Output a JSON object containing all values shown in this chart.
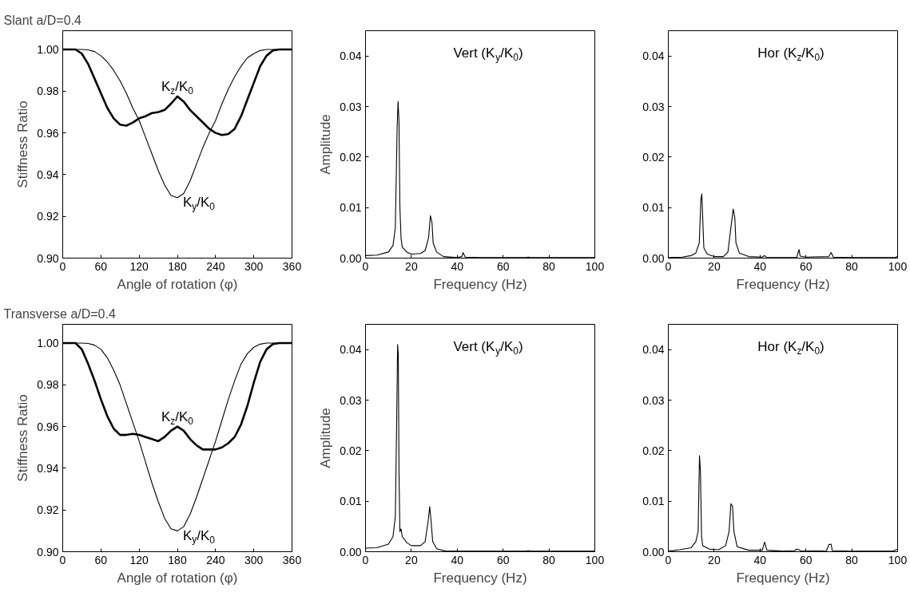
{
  "chart_data": [
    {
      "type": "line",
      "title": "Slant a/D=0.4",
      "xlabel": "Angle of rotation (φ)",
      "ylabel": "Stiffness Ratio",
      "xlim": [
        0,
        360
      ],
      "xticks": [
        0,
        60,
        120,
        180,
        240,
        300,
        360
      ],
      "ylim": [
        0.9,
        1.009
      ],
      "yticks": [
        {
          "value": 0.9,
          "label": "0.90"
        },
        {
          "value": 0.92,
          "label": "0.92"
        },
        {
          "value": 0.94,
          "label": "0.94"
        },
        {
          "value": 0.96,
          "label": "0.96"
        },
        {
          "value": 0.98,
          "label": "0.98"
        },
        {
          "value": 1.0,
          "label": "1.00"
        }
      ],
      "x": [
        0,
        10,
        20,
        30,
        40,
        50,
        60,
        70,
        80,
        90,
        100,
        110,
        120,
        130,
        140,
        150,
        160,
        170,
        180,
        190,
        200,
        210,
        220,
        230,
        240,
        250,
        260,
        270,
        280,
        290,
        300,
        310,
        320,
        330,
        340,
        350,
        360
      ],
      "series": [
        {
          "name": "K$_{z}$/K$_{0}$",
          "color": "#000000",
          "values": [
            1.0,
            1.0,
            1.0,
            0.998,
            0.993,
            0.986,
            0.979,
            0.972,
            0.967,
            0.964,
            0.9635,
            0.965,
            0.967,
            0.968,
            0.9695,
            0.97,
            0.971,
            0.974,
            0.9775,
            0.975,
            0.971,
            0.968,
            0.965,
            0.962,
            0.96,
            0.959,
            0.9595,
            0.962,
            0.968,
            0.976,
            0.984,
            0.992,
            0.997,
            0.9995,
            1.0,
            1.0,
            1.0
          ]
        },
        {
          "name": "K$_{y}$/K$_{0}$",
          "color": "#000000",
          "values": [
            1.0,
            1.0,
            1.0,
            1.0,
            0.9998,
            0.999,
            0.997,
            0.994,
            0.99,
            0.985,
            0.979,
            0.972,
            0.966,
            0.958,
            0.95,
            0.942,
            0.935,
            0.93,
            0.929,
            0.931,
            0.937,
            0.945,
            0.953,
            0.96,
            0.966,
            0.974,
            0.981,
            0.987,
            0.992,
            0.996,
            0.998,
            0.9995,
            1.0,
            1.0,
            1.0,
            1.0,
            1.0
          ]
        }
      ]
    },
    {
      "type": "line",
      "xlabel": "Frequency (Hz)",
      "ylabel": "Amplitude",
      "xlim": [
        0,
        100
      ],
      "xticks": [
        0,
        20,
        40,
        60,
        80,
        100
      ],
      "ylim": [
        0,
        0.045
      ],
      "yticks": [
        {
          "value": 0,
          "label": "0.00"
        },
        {
          "value": 0.01,
          "label": "0.01"
        },
        {
          "value": 0.02,
          "label": "0.02"
        },
        {
          "value": 0.03,
          "label": "0.03"
        },
        {
          "value": 0.04,
          "label": "0.04"
        }
      ],
      "x": [
        0,
        5,
        10,
        12,
        13,
        13.8,
        14.2,
        14.6,
        15,
        15.5,
        16,
        18,
        20,
        24,
        26,
        27.5,
        28.3,
        29,
        29.5,
        31,
        34,
        40,
        42,
        42.5,
        43.5,
        50,
        60,
        70,
        71,
        72,
        80,
        100
      ],
      "series": [
        {
          "name": "Vert (K$_{y}$/K$_{0}$)",
          "color": "#000000",
          "values": [
            0.0005,
            0.0006,
            0.0012,
            0.0025,
            0.006,
            0.026,
            0.031,
            0.027,
            0.01,
            0.004,
            0.0022,
            0.0012,
            0.0008,
            0.0009,
            0.0015,
            0.004,
            0.0084,
            0.007,
            0.003,
            0.0012,
            0.0003,
            0.0001,
            0.0003,
            0.0011,
            0.0002,
            0.0001,
            0.0001,
            0.0001,
            0.0002,
            0.0001,
            0.0001,
            0.0001
          ]
        }
      ]
    },
    {
      "type": "line",
      "xlabel": "Frequency (Hz)",
      "xlim": [
        0,
        100
      ],
      "xticks": [
        0,
        20,
        40,
        60,
        80,
        100
      ],
      "ylim": [
        0,
        0.045
      ],
      "yticks": [
        {
          "value": 0,
          "label": "0.00"
        },
        {
          "value": 0.01,
          "label": "0.01"
        },
        {
          "value": 0.02,
          "label": "0.02"
        },
        {
          "value": 0.03,
          "label": "0.03"
        },
        {
          "value": 0.04,
          "label": "0.04"
        }
      ],
      "x": [
        0,
        6,
        10,
        12,
        13.5,
        14.2,
        14.6,
        15,
        15.5,
        17,
        20,
        24,
        26,
        27.5,
        28.3,
        29,
        29.5,
        31,
        35,
        41,
        42,
        43,
        56,
        57,
        57.5,
        60,
        70,
        71,
        72,
        80,
        99,
        100
      ],
      "series": [
        {
          "name": "Hor (K$_{z}$/K$_{0}$)",
          "color": "#000000",
          "values": [
            0.0001,
            0.0002,
            0.0005,
            0.001,
            0.003,
            0.0115,
            0.0127,
            0.008,
            0.002,
            0.0008,
            0.0003,
            0.0003,
            0.0012,
            0.0068,
            0.0097,
            0.008,
            0.003,
            0.001,
            0.0003,
            0.0002,
            0.0005,
            0.0001,
            0.0001,
            0.0017,
            0.0004,
            0.0002,
            0.0003,
            0.0011,
            0.0002,
            0.0001,
            0.0001,
            0.0004
          ]
        }
      ]
    },
    {
      "type": "line",
      "title": "Transverse a/D=0.4",
      "xlabel": "Angle of rotation (φ)",
      "ylabel": "Stiffness Ratio",
      "xlim": [
        0,
        360
      ],
      "xticks": [
        0,
        60,
        120,
        180,
        240,
        300,
        360
      ],
      "ylim": [
        0.9,
        1.009
      ],
      "yticks": [
        {
          "value": 0.9,
          "label": "0.90"
        },
        {
          "value": 0.92,
          "label": "0.92"
        },
        {
          "value": 0.94,
          "label": "0.94"
        },
        {
          "value": 0.96,
          "label": "0.96"
        },
        {
          "value": 0.98,
          "label": "0.98"
        },
        {
          "value": 1.0,
          "label": "1.00"
        }
      ],
      "x": [
        0,
        10,
        20,
        30,
        40,
        50,
        60,
        70,
        80,
        90,
        100,
        110,
        120,
        130,
        140,
        150,
        160,
        170,
        180,
        190,
        200,
        210,
        220,
        230,
        240,
        250,
        260,
        270,
        280,
        290,
        300,
        310,
        320,
        330,
        340,
        350,
        360
      ],
      "series": [
        {
          "name": "K$_{z}$/K$_{0}$",
          "color": "#000000",
          "values": [
            1.0,
            1.0,
            1.0,
            0.997,
            0.99,
            0.982,
            0.973,
            0.965,
            0.959,
            0.956,
            0.956,
            0.9565,
            0.956,
            0.955,
            0.954,
            0.953,
            0.955,
            0.958,
            0.96,
            0.958,
            0.954,
            0.951,
            0.949,
            0.949,
            0.949,
            0.95,
            0.952,
            0.955,
            0.961,
            0.97,
            0.981,
            0.991,
            0.997,
            0.9995,
            1.0,
            1.0,
            1.0
          ]
        },
        {
          "name": "K$_{y}$/K$_{0}$",
          "color": "#000000",
          "values": [
            1.0,
            1.0,
            1.0,
            1.0,
            0.9998,
            0.999,
            0.997,
            0.993,
            0.987,
            0.98,
            0.971,
            0.962,
            0.953,
            0.943,
            0.933,
            0.924,
            0.916,
            0.911,
            0.91,
            0.912,
            0.918,
            0.926,
            0.935,
            0.944,
            0.953,
            0.963,
            0.973,
            0.982,
            0.99,
            0.995,
            0.998,
            0.9995,
            1.0,
            1.0,
            1.0,
            1.0,
            1.0
          ]
        }
      ]
    },
    {
      "type": "line",
      "xlabel": "Frequency (Hz)",
      "ylabel": "Amplitude",
      "xlim": [
        0,
        100
      ],
      "xticks": [
        0,
        20,
        40,
        60,
        80,
        100
      ],
      "ylim": [
        0,
        0.045
      ],
      "yticks": [
        {
          "value": 0,
          "label": "0.00"
        },
        {
          "value": 0.01,
          "label": "0.01"
        },
        {
          "value": 0.02,
          "label": "0.02"
        },
        {
          "value": 0.03,
          "label": "0.03"
        },
        {
          "value": 0.04,
          "label": "0.04"
        }
      ],
      "x": [
        0,
        5,
        10,
        12,
        13,
        13.6,
        14,
        14.3,
        14.6,
        15,
        15.5,
        16,
        18,
        20,
        24,
        26,
        27.3,
        28,
        28.6,
        29.3,
        31,
        35,
        40,
        60,
        70,
        71,
        72,
        100
      ],
      "series": [
        {
          "name": "Vert (K$_{y}$/K$_{0}$)",
          "color": "#000000",
          "values": [
            0.0007,
            0.0008,
            0.0015,
            0.003,
            0.007,
            0.026,
            0.041,
            0.039,
            0.016,
            0.004,
            0.0045,
            0.003,
            0.0018,
            0.0012,
            0.0012,
            0.002,
            0.006,
            0.0089,
            0.006,
            0.002,
            0.0006,
            0.0001,
            0.0001,
            0.0001,
            0.0001,
            0.0002,
            0.0001,
            0.0001
          ]
        }
      ]
    },
    {
      "type": "line",
      "xlabel": "Frequency (Hz)",
      "xlim": [
        0,
        100
      ],
      "xticks": [
        0,
        20,
        40,
        60,
        80,
        100
      ],
      "ylim": [
        0,
        0.045
      ],
      "yticks": [
        {
          "value": 0,
          "label": "0.00"
        },
        {
          "value": 0.01,
          "label": "0.01"
        },
        {
          "value": 0.02,
          "label": "0.02"
        },
        {
          "value": 0.03,
          "label": "0.03"
        },
        {
          "value": 0.04,
          "label": "0.04"
        }
      ],
      "x": [
        0,
        5,
        10,
        12,
        13,
        13.6,
        14,
        14.5,
        15,
        18,
        22,
        25,
        26.5,
        27.3,
        28,
        28.6,
        30,
        35,
        41,
        42,
        43,
        50,
        55,
        56,
        57,
        58,
        69,
        70,
        71,
        71.5,
        80,
        98,
        100
      ],
      "series": [
        {
          "name": "Hor (K$_{z}$/K$_{0}$)",
          "color": "#000000",
          "values": [
            0.0001,
            0.0004,
            0.0008,
            0.002,
            0.004,
            0.019,
            0.016,
            0.003,
            0.0012,
            0.0005,
            0.0004,
            0.0012,
            0.004,
            0.0095,
            0.009,
            0.004,
            0.001,
            0.0003,
            0.0003,
            0.0019,
            0.0003,
            0.0001,
            0.0002,
            0.0005,
            0.0004,
            0.0001,
            0.0002,
            0.0014,
            0.0015,
            0.0002,
            0.0001,
            0.0001,
            0.0005
          ]
        }
      ]
    }
  ]
}
